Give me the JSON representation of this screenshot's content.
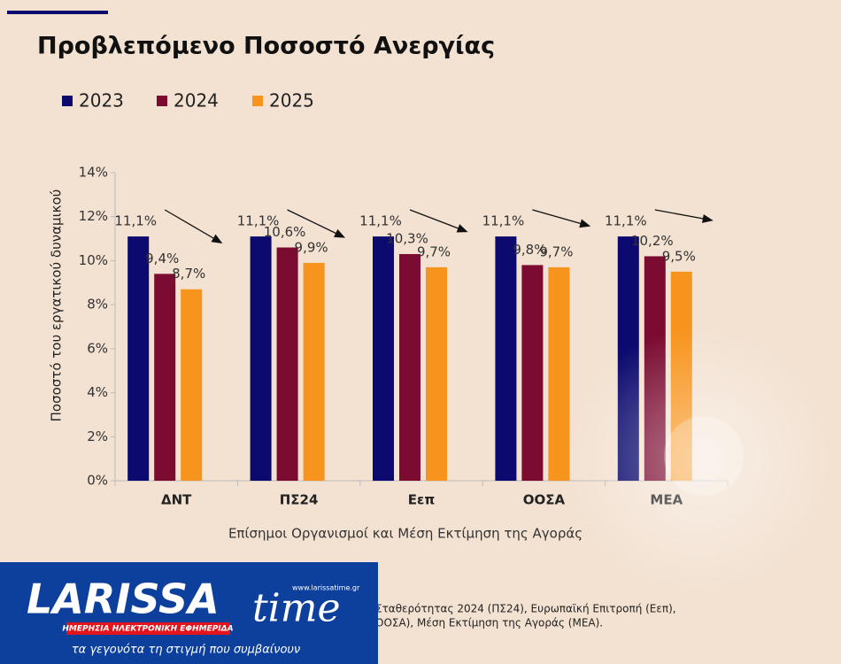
{
  "chart_data": {
    "type": "bar",
    "title": "Προβλεπόμενο Ποσοστό Ανεργίας",
    "y_label": "Ποσοστό του εργατικού δυναμικού",
    "x_label": "Επίσημοι Οργανισμοί και Μέση Εκτίμηση της Αγοράς",
    "categories": [
      "ΔΝΤ",
      "ΠΣ24",
      "Εεπ",
      "ΟΟΣΑ",
      "ΜΕΑ"
    ],
    "series": [
      {
        "name": "2023",
        "color": "#0c0a6e",
        "values": [
          11.1,
          11.1,
          11.1,
          11.1,
          11.1
        ],
        "value_labels": [
          "11,1%",
          "11,1%",
          "11,1%",
          "11,1%",
          "11,1%"
        ]
      },
      {
        "name": "2024",
        "color": "#7b0b30",
        "values": [
          9.4,
          10.6,
          10.3,
          9.8,
          10.2
        ],
        "value_labels": [
          "9,4%",
          "10,6%",
          "10,3%",
          "9,8%",
          "10,2%"
        ]
      },
      {
        "name": "2025",
        "color": "#f7941d",
        "values": [
          8.7,
          9.9,
          9.7,
          9.7,
          9.5
        ],
        "value_labels": [
          "8,7%",
          "9,9%",
          "9,7%",
          "9,7%",
          "9,5%"
        ]
      }
    ],
    "ylim": [
      0,
      14
    ],
    "yticks": [
      {
        "value": 0,
        "label": "0%"
      },
      {
        "value": 2,
        "label": "2%"
      },
      {
        "value": 4,
        "label": "4%"
      },
      {
        "value": 6,
        "label": "6%"
      },
      {
        "value": 8,
        "label": "8%"
      },
      {
        "value": 10,
        "label": "10%"
      },
      {
        "value": 12,
        "label": "12%"
      },
      {
        "value": 14,
        "label": "14%"
      }
    ],
    "grid": false,
    "legend": "top-left"
  },
  "footer": {
    "lines": [
      "Σταθερότητας 2024 (ΠΣ24), Ευρωπαϊκή Επιτροπή (Εεπ),",
      "ΟΟΣΑ), Μέση Εκτίμηση της Αγοράς (ΜΕΑ)."
    ]
  },
  "logo": {
    "name_left": "LARISSA",
    "name_right": "time",
    "url": "www.larissatime.gr",
    "subtitle": "ΗΜΕΡΗΣΙΑ ΗΛΕΚΤΡΟΝΙΚΗ ΕΦΗΜΕΡΙΔΑ",
    "slogan": "τα γεγονότα τη στιγμή που συμβαίνουν"
  }
}
